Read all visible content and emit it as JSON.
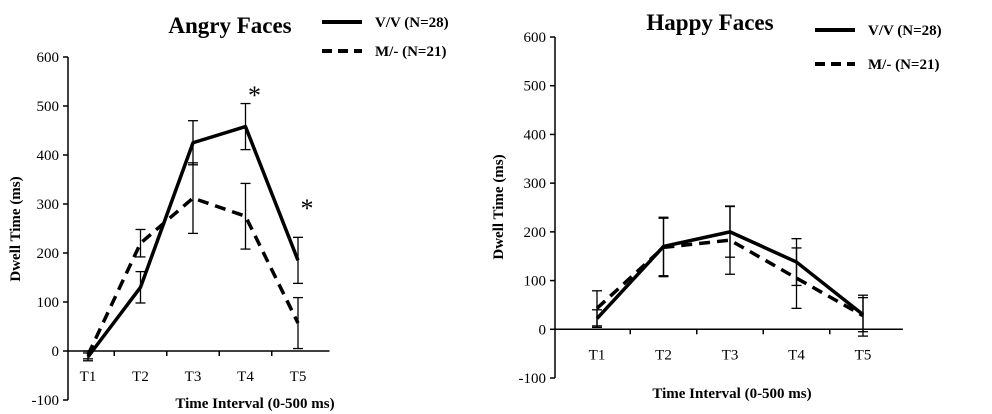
{
  "chart_data": [
    {
      "type": "line",
      "title": "Angry Faces",
      "xlabel": "Time Interval (0-500 ms)",
      "ylabel": "Dwell Time (ms)",
      "ylim": [
        -100,
        600
      ],
      "yticks": [
        -100,
        0,
        100,
        200,
        300,
        400,
        500,
        600
      ],
      "categories": [
        "T1",
        "T2",
        "T3",
        "T4",
        "T5"
      ],
      "grid": false,
      "legend_position": "top-right",
      "series": [
        {
          "name": "V/V (N=28)",
          "style": "solid",
          "values": [
            -12,
            130,
            425,
            458,
            185
          ],
          "errors": [
            8,
            32,
            45,
            47,
            47
          ]
        },
        {
          "name": "M/- (N=21)",
          "style": "dashed",
          "values": [
            -8,
            220,
            312,
            275,
            57
          ],
          "errors": [
            8,
            28,
            72,
            67,
            52
          ]
        }
      ],
      "annotations": [
        {
          "category": "T4",
          "text": "*"
        },
        {
          "category": "T5",
          "text": "*"
        }
      ]
    },
    {
      "type": "line",
      "title": "Happy Faces",
      "xlabel": "Time Interval (0-500 ms)",
      "ylabel": "Dwell Time (ms)",
      "ylim": [
        -100,
        600
      ],
      "yticks": [
        -100,
        0,
        100,
        200,
        300,
        400,
        500,
        600
      ],
      "categories": [
        "T1",
        "T2",
        "T3",
        "T4",
        "T5"
      ],
      "grid": false,
      "legend_position": "top-right",
      "series": [
        {
          "name": "V/V (N=28)",
          "style": "solid",
          "values": [
            22,
            170,
            200,
            138,
            30
          ],
          "errors": [
            18,
            60,
            52,
            48,
            35
          ]
        },
        {
          "name": "M/- (N=21)",
          "style": "dashed",
          "values": [
            43,
            168,
            183,
            105,
            28
          ],
          "errors": [
            36,
            60,
            70,
            62,
            42
          ]
        }
      ],
      "annotations": []
    }
  ]
}
